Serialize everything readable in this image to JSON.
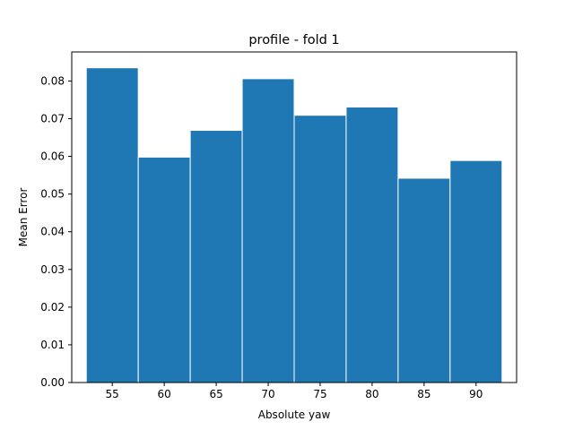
{
  "chart_data": {
    "type": "bar",
    "title": "profile - fold 1",
    "xlabel": "Absolute yaw",
    "ylabel": "Mean Error",
    "x": [
      55,
      60,
      65,
      70,
      75,
      80,
      85,
      90
    ],
    "values": [
      0.0835,
      0.0598,
      0.0669,
      0.0806,
      0.0709,
      0.0731,
      0.0542,
      0.0589
    ],
    "bar_width": 5,
    "xlim": [
      51.1,
      93.9
    ],
    "ylim": [
      0,
      0.0877
    ],
    "x_ticks": [
      "55",
      "60",
      "65",
      "70",
      "75",
      "80",
      "85",
      "90"
    ],
    "y_ticks": [
      "0.00",
      "0.01",
      "0.02",
      "0.03",
      "0.04",
      "0.05",
      "0.06",
      "0.07",
      "0.08"
    ],
    "bar_color": "#1f77b4",
    "edge_color": "#ffffff",
    "grid": false,
    "legend": "none"
  }
}
